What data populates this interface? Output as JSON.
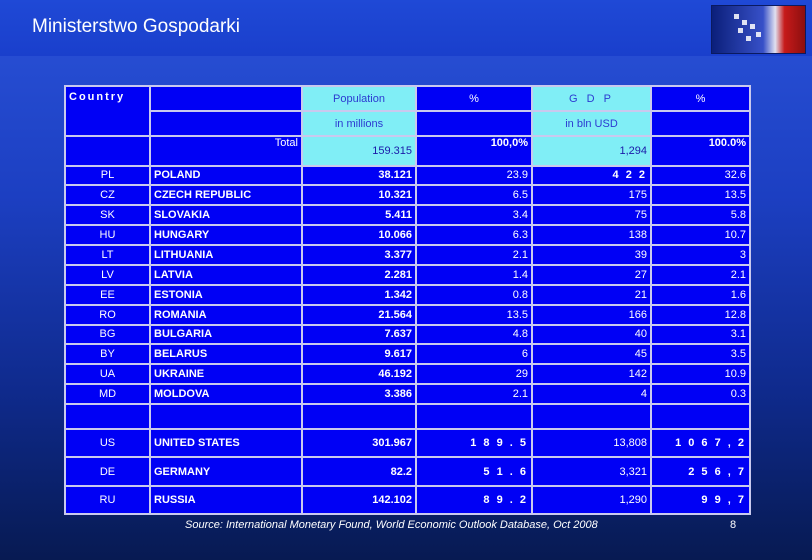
{
  "header": {
    "title": "Ministerstwo Gospodarki"
  },
  "table": {
    "headers": {
      "country": "Country",
      "population": "Population",
      "population_unit": "in millions",
      "pct1": "%",
      "gdp": "G D P",
      "gdp_unit": "in bln USD",
      "pct2": "%"
    },
    "total": {
      "label": "Total",
      "population": "159.315",
      "pct1": "100,0%",
      "gdp": "1,294",
      "pct2": "100.0%"
    },
    "rows": [
      {
        "code": "PL",
        "name": "POLAND",
        "pop": "38.121",
        "pct1": "23.9",
        "gdp": "4 2 2",
        "pct2": "32.6"
      },
      {
        "code": "CZ",
        "name": "CZECH REPUBLIC",
        "pop": "10.321",
        "pct1": "6.5",
        "gdp": "175",
        "pct2": "13.5"
      },
      {
        "code": "SK",
        "name": "SLOVAKIA",
        "pop": "5.411",
        "pct1": "3.4",
        "gdp": "75",
        "pct2": "5.8"
      },
      {
        "code": "HU",
        "name": "HUNGARY",
        "pop": "10.066",
        "pct1": "6.3",
        "gdp": "138",
        "pct2": "10.7"
      },
      {
        "code": "LT",
        "name": "LITHUANIA",
        "pop": "3.377",
        "pct1": "2.1",
        "gdp": "39",
        "pct2": "3"
      },
      {
        "code": "LV",
        "name": "LATVIA",
        "pop": "2.281",
        "pct1": "1.4",
        "gdp": "27",
        "pct2": "2.1"
      },
      {
        "code": "EE",
        "name": "ESTONIA",
        "pop": "1.342",
        "pct1": "0.8",
        "gdp": "21",
        "pct2": "1.6"
      },
      {
        "code": "RO",
        "name": "ROMANIA",
        "pop": "21.564",
        "pct1": "13.5",
        "gdp": "166",
        "pct2": "12.8"
      },
      {
        "code": "BG",
        "name": "BULGARIA",
        "pop": "7.637",
        "pct1": "4.8",
        "gdp": "40",
        "pct2": "3.1"
      },
      {
        "code": "BY",
        "name": "BELARUS",
        "pop": "9.617",
        "pct1": "6",
        "gdp": "45",
        "pct2": "3.5"
      },
      {
        "code": "UA",
        "name": "UKRAINE",
        "pop": "46.192",
        "pct1": "29",
        "gdp": "142",
        "pct2": "10.9"
      },
      {
        "code": "MD",
        "name": "MOLDOVA",
        "pop": "3.386",
        "pct1": "2.1",
        "gdp": "4",
        "pct2": "0.3"
      }
    ],
    "extra_rows": [
      {
        "code": "US",
        "name": "UNITED STATES",
        "pop": "301.967",
        "pct1": "1 8 9 . 5",
        "gdp": "13,808",
        "pct2": "1 0 6 7 , 2"
      },
      {
        "code": "DE",
        "name": "GERMANY",
        "pop": "82.2",
        "pct1": "5 1 . 6",
        "gdp": "3,321",
        "pct2": "2 5 6 , 7"
      },
      {
        "code": "RU",
        "name": "RUSSIA",
        "pop": "142.102",
        "pct1": "8 9 . 2",
        "gdp": "1,290",
        "pct2": "9 9 , 7"
      }
    ]
  },
  "footer": {
    "source": "Source: International Monetary Found, World Economic Outlook Database, Oct 2008",
    "page_number": "8"
  }
}
